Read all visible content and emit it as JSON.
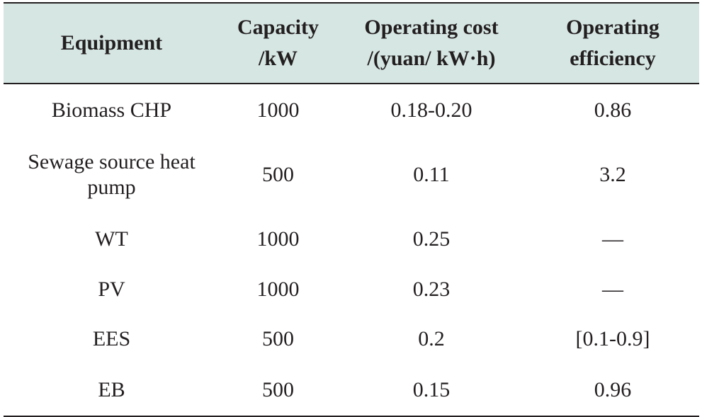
{
  "table": {
    "headers": [
      {
        "lines": [
          "Equipment"
        ]
      },
      {
        "lines": [
          "Capacity",
          "/kW"
        ]
      },
      {
        "lines": [
          "Operating cost",
          "/(yuan/ kW·h)"
        ]
      },
      {
        "lines": [
          "Operating",
          "efficiency"
        ]
      }
    ],
    "rows": [
      {
        "equipment": [
          "Biomass CHP"
        ],
        "capacity": "1000",
        "cost": "0.18-0.20",
        "efficiency": "0.86"
      },
      {
        "equipment": [
          "Sewage source heat",
          "pump"
        ],
        "capacity": "500",
        "cost": "0.11",
        "efficiency": "3.2"
      },
      {
        "equipment": [
          "WT"
        ],
        "capacity": "1000",
        "cost": "0.25",
        "efficiency": "—"
      },
      {
        "equipment": [
          "PV"
        ],
        "capacity": "1000",
        "cost": "0.23",
        "efficiency": "—"
      },
      {
        "equipment": [
          "EES"
        ],
        "capacity": "500",
        "cost": "0.2",
        "efficiency": "[0.1-0.9]"
      },
      {
        "equipment": [
          "EB"
        ],
        "capacity": "500",
        "cost": "0.15",
        "efficiency": "0.96"
      }
    ]
  },
  "colors": {
    "header_background": "#d6e6e3",
    "rule": "#231f20",
    "text": "#231f20"
  }
}
